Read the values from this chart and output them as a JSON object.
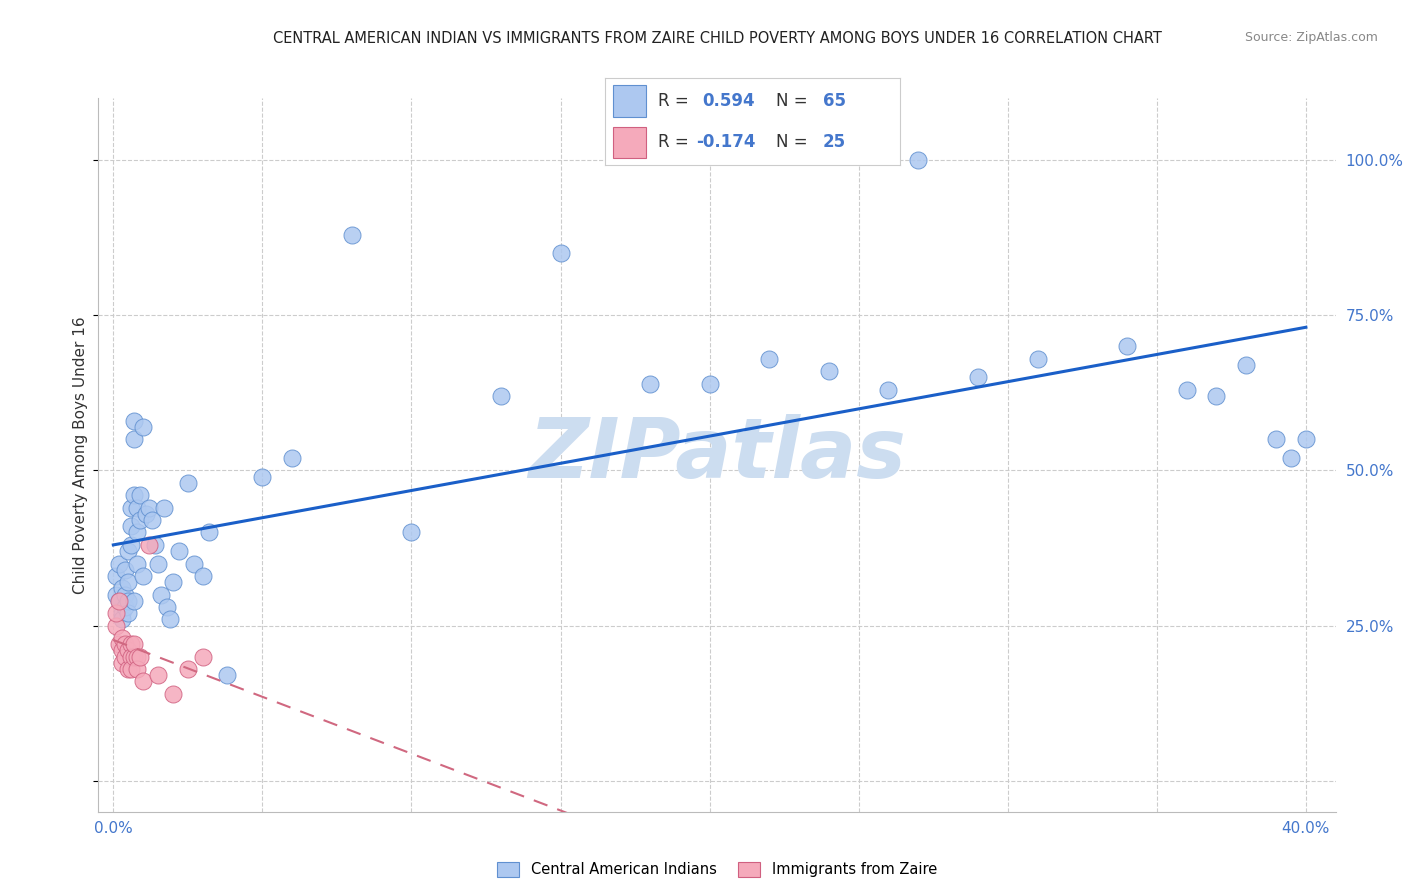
{
  "title": "CENTRAL AMERICAN INDIAN VS IMMIGRANTS FROM ZAIRE CHILD POVERTY AMONG BOYS UNDER 16 CORRELATION CHART",
  "source": "Source: ZipAtlas.com",
  "ylabel": "Child Poverty Among Boys Under 16",
  "legend_label1": "Central American Indians",
  "legend_label2": "Immigrants from Zaire",
  "R1": 0.594,
  "N1": 65,
  "R2": -0.174,
  "N2": 25,
  "color_blue": "#adc8f0",
  "color_pink": "#f5aabb",
  "edge_blue": "#6090d0",
  "edge_pink": "#d06080",
  "line_blue": "#1a5fc8",
  "line_pink": "#d06880",
  "watermark": "ZIPatlas",
  "watermark_color": "#ccddf0",
  "blue_x": [
    0.001,
    0.001,
    0.002,
    0.002,
    0.003,
    0.003,
    0.003,
    0.004,
    0.004,
    0.004,
    0.005,
    0.005,
    0.005,
    0.005,
    0.006,
    0.006,
    0.006,
    0.007,
    0.007,
    0.007,
    0.007,
    0.008,
    0.008,
    0.008,
    0.009,
    0.009,
    0.01,
    0.01,
    0.011,
    0.012,
    0.013,
    0.014,
    0.015,
    0.016,
    0.017,
    0.018,
    0.019,
    0.02,
    0.022,
    0.025,
    0.027,
    0.03,
    0.032,
    0.038,
    0.05,
    0.06,
    0.08,
    0.1,
    0.13,
    0.15,
    0.18,
    0.2,
    0.22,
    0.24,
    0.26,
    0.27,
    0.29,
    0.31,
    0.34,
    0.36,
    0.37,
    0.38,
    0.39,
    0.395,
    0.4
  ],
  "blue_y": [
    0.3,
    0.33,
    0.29,
    0.35,
    0.27,
    0.31,
    0.26,
    0.3,
    0.28,
    0.34,
    0.29,
    0.27,
    0.32,
    0.37,
    0.44,
    0.41,
    0.38,
    0.46,
    0.55,
    0.58,
    0.29,
    0.44,
    0.4,
    0.35,
    0.42,
    0.46,
    0.57,
    0.33,
    0.43,
    0.44,
    0.42,
    0.38,
    0.35,
    0.3,
    0.44,
    0.28,
    0.26,
    0.32,
    0.37,
    0.48,
    0.35,
    0.33,
    0.4,
    0.17,
    0.49,
    0.52,
    0.88,
    0.4,
    0.62,
    0.85,
    0.64,
    0.64,
    0.68,
    0.66,
    0.63,
    1.0,
    0.65,
    0.68,
    0.7,
    0.63,
    0.62,
    0.67,
    0.55,
    0.52,
    0.55
  ],
  "pink_x": [
    0.001,
    0.001,
    0.002,
    0.002,
    0.003,
    0.003,
    0.003,
    0.004,
    0.004,
    0.005,
    0.005,
    0.006,
    0.006,
    0.006,
    0.007,
    0.007,
    0.008,
    0.008,
    0.009,
    0.01,
    0.012,
    0.015,
    0.02,
    0.025,
    0.03
  ],
  "pink_y": [
    0.25,
    0.27,
    0.22,
    0.29,
    0.21,
    0.23,
    0.19,
    0.22,
    0.2,
    0.21,
    0.18,
    0.22,
    0.2,
    0.18,
    0.2,
    0.22,
    0.2,
    0.18,
    0.2,
    0.16,
    0.38,
    0.17,
    0.14,
    0.18,
    0.2
  ],
  "xlim": [
    -0.005,
    0.41
  ],
  "ylim": [
    -0.05,
    1.1
  ],
  "xtick_positions": [
    0.0,
    0.05,
    0.1,
    0.15,
    0.2,
    0.25,
    0.3,
    0.35,
    0.4
  ],
  "ytick_positions": [
    0.0,
    0.25,
    0.5,
    0.75,
    1.0
  ],
  "ytick_labels": [
    "",
    "25.0%",
    "50.0%",
    "75.0%",
    "100.0%"
  ]
}
